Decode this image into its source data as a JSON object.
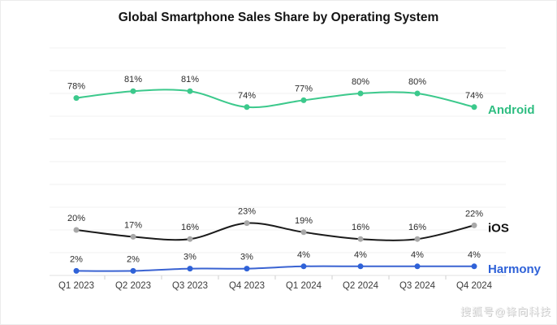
{
  "title": "Global Smartphone Sales Share by Operating System",
  "watermark": "搜狐号@锋向科技",
  "chart_data": {
    "type": "line",
    "title": "Global Smartphone Sales Share by Operating System",
    "categories": [
      "Q1 2023",
      "Q2 2023",
      "Q3 2023",
      "Q4 2023",
      "Q1 2024",
      "Q2 2024",
      "Q3 2024",
      "Q4 2024"
    ],
    "series": [
      {
        "name": "Android",
        "color": "#3cc98c",
        "marker_color": "#3cc98c",
        "label_color": "#2ebd81",
        "values": [
          78,
          81,
          81,
          74,
          77,
          80,
          80,
          74
        ]
      },
      {
        "name": "iOS",
        "color": "#1b1b1b",
        "marker_color": "#a8a8a8",
        "label_color": "#111111",
        "values": [
          20,
          17,
          16,
          23,
          19,
          16,
          16,
          22
        ]
      },
      {
        "name": "Harmony",
        "color": "#3a63d2",
        "marker_color": "#2f62d8",
        "label_color": "#2f62d8",
        "values": [
          2,
          2,
          3,
          3,
          4,
          4,
          4,
          4
        ]
      }
    ],
    "ylim": [
      0,
      100
    ],
    "grid": "horizontal",
    "grid_step": 10,
    "data_labels": "percent",
    "legend_position": "end-of-line",
    "xlabel": "",
    "ylabel": ""
  },
  "style": {
    "grid_color": "#f1f1f1",
    "axis_color": "#e2e2e2",
    "tick_color": "#cfcfcf",
    "data_label_color": "#2b2b2b",
    "x_label_color": "#3c3c3c",
    "background": "#ffffff"
  }
}
